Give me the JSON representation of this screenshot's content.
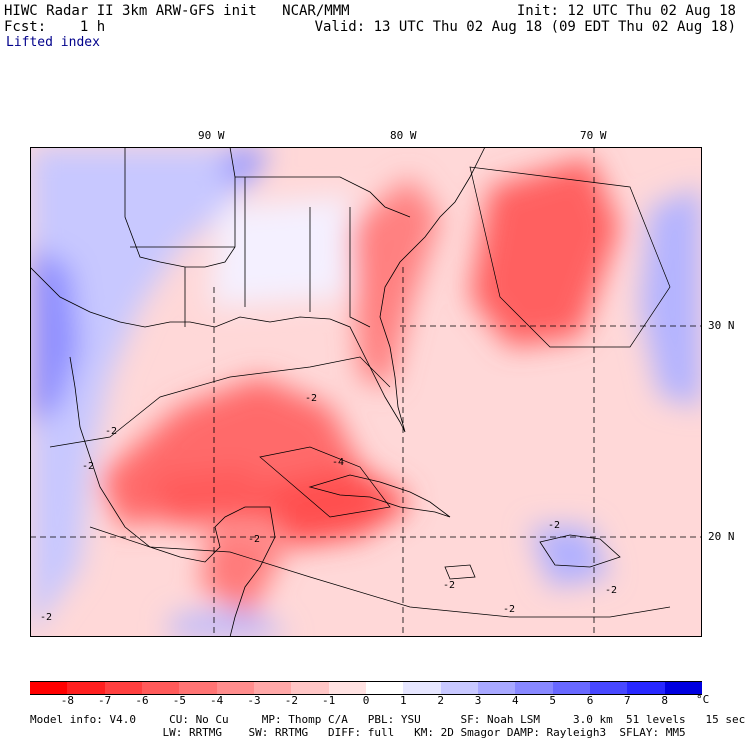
{
  "header": {
    "left_line1": "HIWC Radar II 3km ARW-GFS init   NCAR/MMM",
    "left_line2": "Fcst:    1 h",
    "left_line3": "Lifted index",
    "right_line1": "Init: 12 UTC Thu 02 Aug 18",
    "right_line2": "Valid: 13 UTC Thu 02 Aug 18 (09 EDT Thu 02 Aug 18)"
  },
  "map": {
    "lon_labels": [
      "90 W",
      "80 W",
      "70 W"
    ],
    "lat_labels": [
      "30 N",
      "20 N"
    ],
    "contour_labels": [
      "-2",
      "-2",
      "-4",
      "-2",
      "-2",
      "-2",
      "-2",
      "-2",
      "-2",
      "-2"
    ]
  },
  "colorbar": {
    "ticks": [
      "-8",
      "-7",
      "-6",
      "-5",
      "-4",
      "-3",
      "-2",
      "-1",
      "0",
      "1",
      "2",
      "3",
      "4",
      "5",
      "6",
      "7",
      "8"
    ],
    "unit": "°C",
    "colors": [
      "#ff0000",
      "#ff1f1f",
      "#ff3f3f",
      "#ff5a5a",
      "#ff7474",
      "#ff8d8d",
      "#ffa8a8",
      "#ffc6c6",
      "#ffe2e2",
      "#ffffff",
      "#e6e6ff",
      "#c8c8ff",
      "#a8a8ff",
      "#8888ff",
      "#6868ff",
      "#4848ff",
      "#2828ff",
      "#0000e0"
    ]
  },
  "footer": {
    "line1": "Model info: V4.0     CU: No Cu     MP: Thomp C/A   PBL: YSU      SF: Noah LSM     3.0 km  51 levels   15 sec",
    "line2": "                    LW: RRTMG    SW: RRTMG   DIFF: full   KM: 2D Smagor DAMP: Rayleigh3  SFLAY: MM5"
  }
}
